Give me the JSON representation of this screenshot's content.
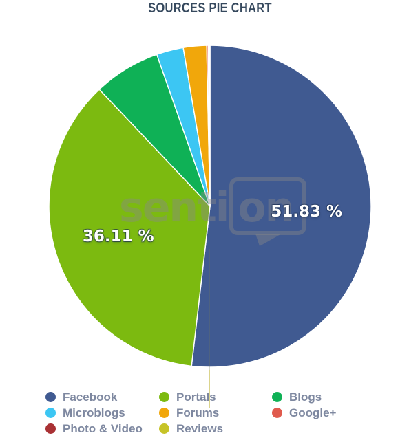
{
  "title": "SOURCES PIE CHART",
  "watermark": {
    "part1": "senti",
    "part2": "on"
  },
  "colors": {
    "title_text": "#36495e",
    "legend_text": "#7e88a0",
    "slice_border": "#ffffff",
    "background": "#ffffff",
    "label_text": "#ffffff"
  },
  "chart_data": {
    "type": "pie",
    "title": "SOURCES PIE CHART",
    "unit": "%",
    "start_angle_deg": 0,
    "direction": "clockwise",
    "legend_position": "bottom",
    "grid": false,
    "series": [
      {
        "name": "Facebook",
        "value": 51.83,
        "label": "51.83 %",
        "color": "#405a91"
      },
      {
        "name": "Portals",
        "value": 36.11,
        "label": "36.11 %",
        "color": "#7cba10"
      },
      {
        "name": "Blogs",
        "value": 6.7,
        "label": "",
        "color": "#0fb156"
      },
      {
        "name": "Microblogs",
        "value": 2.7,
        "label": "",
        "color": "#3cc6f3"
      },
      {
        "name": "Forums",
        "value": 2.33,
        "label": "",
        "color": "#f1a70b"
      },
      {
        "name": "Google+",
        "value": 0.15,
        "label": "",
        "color": "#e05a4d"
      },
      {
        "name": "Photo & Video",
        "value": 0.12,
        "label": "",
        "color": "#a93134"
      },
      {
        "name": "Reviews",
        "value": 0.06,
        "label": "",
        "color": "#c6c327"
      }
    ]
  }
}
